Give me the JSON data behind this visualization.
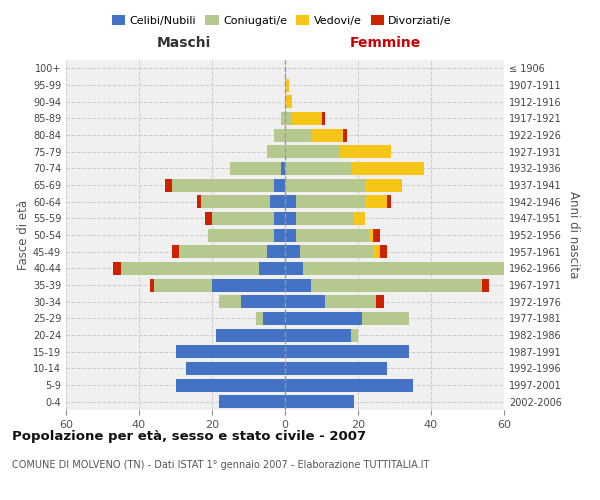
{
  "age_groups": [
    "0-4",
    "5-9",
    "10-14",
    "15-19",
    "20-24",
    "25-29",
    "30-34",
    "35-39",
    "40-44",
    "45-49",
    "50-54",
    "55-59",
    "60-64",
    "65-69",
    "70-74",
    "75-79",
    "80-84",
    "85-89",
    "90-94",
    "95-99",
    "100+"
  ],
  "birth_years": [
    "2002-2006",
    "1997-2001",
    "1992-1996",
    "1987-1991",
    "1982-1986",
    "1977-1981",
    "1972-1976",
    "1967-1971",
    "1962-1966",
    "1957-1961",
    "1952-1956",
    "1947-1951",
    "1942-1946",
    "1937-1941",
    "1932-1936",
    "1927-1931",
    "1922-1926",
    "1917-1921",
    "1912-1916",
    "1907-1911",
    "≤ 1906"
  ],
  "colors": {
    "celibi": "#4472c4",
    "coniugati": "#b5c98e",
    "vedovi": "#f5c518",
    "divorziati": "#cc2200"
  },
  "maschi": {
    "celibi": [
      18,
      30,
      27,
      30,
      19,
      6,
      12,
      20,
      7,
      5,
      3,
      3,
      4,
      3,
      1,
      0,
      0,
      0,
      0,
      0,
      0
    ],
    "coniugati": [
      0,
      0,
      0,
      0,
      0,
      2,
      6,
      16,
      38,
      24,
      18,
      17,
      19,
      28,
      14,
      5,
      3,
      1,
      0,
      0,
      0
    ],
    "vedovi": [
      0,
      0,
      0,
      0,
      0,
      0,
      0,
      0,
      0,
      0,
      0,
      0,
      0,
      0,
      0,
      0,
      0,
      0,
      0,
      0,
      0
    ],
    "divorziati": [
      0,
      0,
      0,
      0,
      0,
      0,
      0,
      1,
      2,
      2,
      0,
      2,
      1,
      2,
      0,
      0,
      0,
      0,
      0,
      0,
      0
    ]
  },
  "femmine": {
    "nubili": [
      19,
      35,
      28,
      34,
      18,
      21,
      11,
      7,
      5,
      4,
      3,
      3,
      3,
      0,
      0,
      0,
      0,
      0,
      0,
      0,
      0
    ],
    "coniugate": [
      0,
      0,
      0,
      0,
      2,
      13,
      14,
      47,
      55,
      20,
      20,
      16,
      19,
      22,
      18,
      15,
      7,
      2,
      0,
      0,
      0
    ],
    "vedove": [
      0,
      0,
      0,
      0,
      0,
      0,
      0,
      0,
      0,
      2,
      1,
      3,
      6,
      10,
      20,
      14,
      9,
      8,
      2,
      1,
      0
    ],
    "divorziate": [
      0,
      0,
      0,
      0,
      0,
      0,
      2,
      2,
      2,
      2,
      2,
      0,
      1,
      0,
      0,
      0,
      1,
      1,
      0,
      0,
      0
    ]
  },
  "xlim": 60,
  "title": "Popolazione per età, sesso e stato civile - 2007",
  "subtitle": "COMUNE DI MOLVENO (TN) - Dati ISTAT 1° gennaio 2007 - Elaborazione TUTTITALIA.IT",
  "ylabel": "Fasce di età",
  "ylabel_right": "Anni di nascita",
  "xlabel_left": "Maschi",
  "xlabel_right": "Femmine",
  "background_color": "#f0f0f0",
  "grid_color": "#cccccc"
}
